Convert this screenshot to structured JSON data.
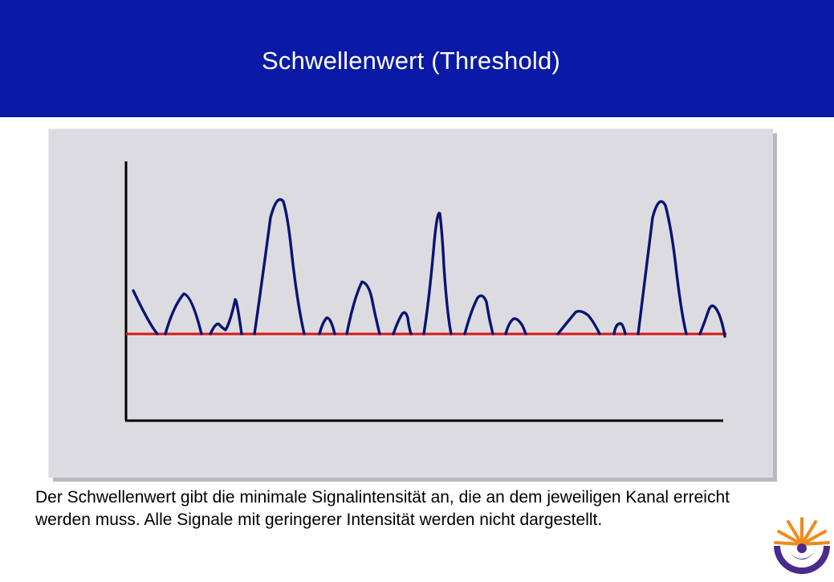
{
  "slide": {
    "title": "Schwellenwert  (Threshold)",
    "caption": "Der Schwellenwert gibt die minimale Signalintensität an, die an dem jeweiligen Kanal erreicht werden muss. Alle Signale mit geringerer Intensität werden nicht dargestellt."
  },
  "colors": {
    "title_bar": "#0a1aa6",
    "title_text": "#ffffff",
    "panel": "#dcdce0",
    "signal": "#0a1470",
    "threshold": "#d81818",
    "axes": "#000000",
    "logo_purple": "#4a2a8a",
    "logo_orange": "#f08a1c"
  },
  "diagram": {
    "signal_trace": "navy waveform with peaks of varying height",
    "threshold_line": "horizontal red line",
    "threshold_level_fraction": 0.34
  },
  "logo": {
    "icon": "sunburst-logo-icon"
  }
}
